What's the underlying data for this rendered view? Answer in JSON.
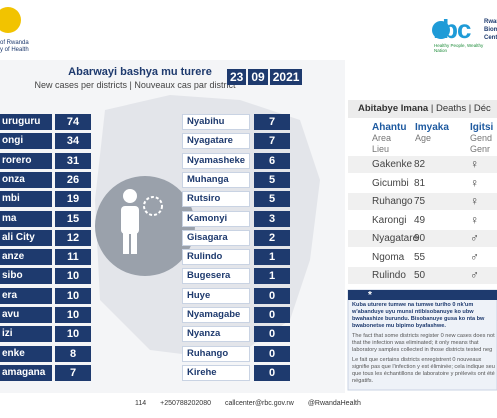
{
  "header": {
    "ministry_line1": "of Rwanda",
    "ministry_line2": "y of Health",
    "logo": "rbc",
    "logo_lines": [
      "Rwanda",
      "Biom",
      "Centr"
    ],
    "slogan": "Healthy People, Wealthy Nation"
  },
  "cases": {
    "title": "Abarwayi bashya mu turere",
    "subtitle": "New cases per districts | Nouveaux cas par district",
    "date": [
      "23",
      "09",
      "2021"
    ],
    "left": [
      [
        "uruguru",
        "74"
      ],
      [
        "ongi",
        "34"
      ],
      [
        "rorero",
        "31"
      ],
      [
        "onza",
        "26"
      ],
      [
        "mbi",
        "19"
      ],
      [
        "ma",
        "15"
      ],
      [
        "ali City",
        "12"
      ],
      [
        "anze",
        "11"
      ],
      [
        "sibo",
        "10"
      ],
      [
        "era",
        "10"
      ],
      [
        "avu",
        "10"
      ],
      [
        "izi",
        "10"
      ],
      [
        "enke",
        "8"
      ],
      [
        "amagana",
        "7"
      ]
    ],
    "right": [
      [
        "Nyabihu",
        "7"
      ],
      [
        "Nyagatare",
        "7"
      ],
      [
        "Nyamasheke",
        "6"
      ],
      [
        "Muhanga",
        "5"
      ],
      [
        "Rutsiro",
        "5"
      ],
      [
        "Kamonyi",
        "3"
      ],
      [
        "Gisagara",
        "2"
      ],
      [
        "Rulindo",
        "1"
      ],
      [
        "Bugesera",
        "1"
      ],
      [
        "Huye",
        "0"
      ],
      [
        "Nyamagabe",
        "0"
      ],
      [
        "Nyanza",
        "0"
      ],
      [
        "Ruhango",
        "0"
      ],
      [
        "Kirehe",
        "0"
      ]
    ]
  },
  "deaths": {
    "title": [
      "Abitabye Imana",
      "Deaths",
      "Déc"
    ],
    "columns": [
      [
        "Ahantu",
        "Area",
        "Lieu"
      ],
      [
        "Imyaka",
        "Age",
        ""
      ],
      [
        "Igitsi",
        "Gend",
        "Genr"
      ]
    ],
    "rows": [
      [
        "Gakenke",
        "82",
        "♀"
      ],
      [
        "Gicumbi",
        "81",
        "♀"
      ],
      [
        "Ruhango",
        "75",
        "♀"
      ],
      [
        "Karongi",
        "49",
        "♀"
      ],
      [
        "Nyagatare",
        "90",
        "♂"
      ],
      [
        "Ngoma",
        "55",
        "♂"
      ],
      [
        "Rulindo",
        "50",
        "♂"
      ]
    ]
  },
  "note": {
    "bold": [
      "Kuba uturere tumwe na tumwe turiho 0 nk'um",
      "w'abanduye uyu munsi ntibisobanuye ko ubw",
      "bwahashize burundu. Bisobanuye gusa ko nta bw",
      "bwabonetse mu bipimo byafashwe."
    ],
    "english": [
      "The fact that some districts register 0 new cases does not",
      "that the infection was eliminated; it only means that",
      "laboratory samples collected in those districts tested neg"
    ],
    "french": [
      "Le fait que certains districts enregistrent 0 nouveaux",
      "signifie pas que l'infection y est éliminée; cela indique seu",
      "que tous les échantillons de laboratoire y prélevés ont été",
      "négatifs."
    ]
  },
  "footer": [
    "114",
    "+250788202080",
    "callcenter@rbc.gov.rw",
    "@RwandaHealth"
  ]
}
